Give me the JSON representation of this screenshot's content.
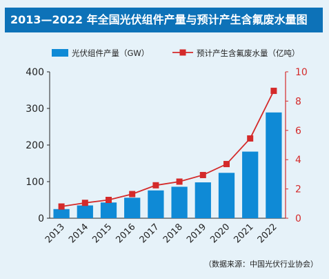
{
  "title": "2013—2022 年全国光伏组件产量与预计产生含氟废水量图",
  "source_note": "（数据来源：中国光伏行业协会）",
  "colors": {
    "background": "#e6f2f9",
    "title_bg": "#0d72b8",
    "bar": "#0f8ad6",
    "line": "#d42a2a",
    "axis": "#222222"
  },
  "chart_data": {
    "type": "bar",
    "categories": [
      "2013",
      "2014",
      "2015",
      "2016",
      "2017",
      "2018",
      "2019",
      "2020",
      "2021",
      "2022"
    ],
    "series": [
      {
        "name": "光伏组件产量（GW）",
        "type": "bar",
        "axis": "left",
        "values": [
          25,
          35,
          43,
          56,
          76,
          86,
          98,
          124,
          182,
          289
        ]
      },
      {
        "name": "预计产生含氟废水量（亿吨）",
        "type": "line",
        "axis": "right",
        "values": [
          0.8,
          1.05,
          1.25,
          1.65,
          2.25,
          2.5,
          2.95,
          3.7,
          5.45,
          8.7
        ]
      }
    ],
    "ylim_left": [
      0,
      400
    ],
    "yticks_left": [
      0,
      100,
      200,
      300,
      400
    ],
    "ylim_right": [
      0,
      10
    ],
    "yticks_right": [
      0,
      2,
      4,
      6,
      8,
      10
    ],
    "grid": false,
    "legend_position": "top"
  }
}
